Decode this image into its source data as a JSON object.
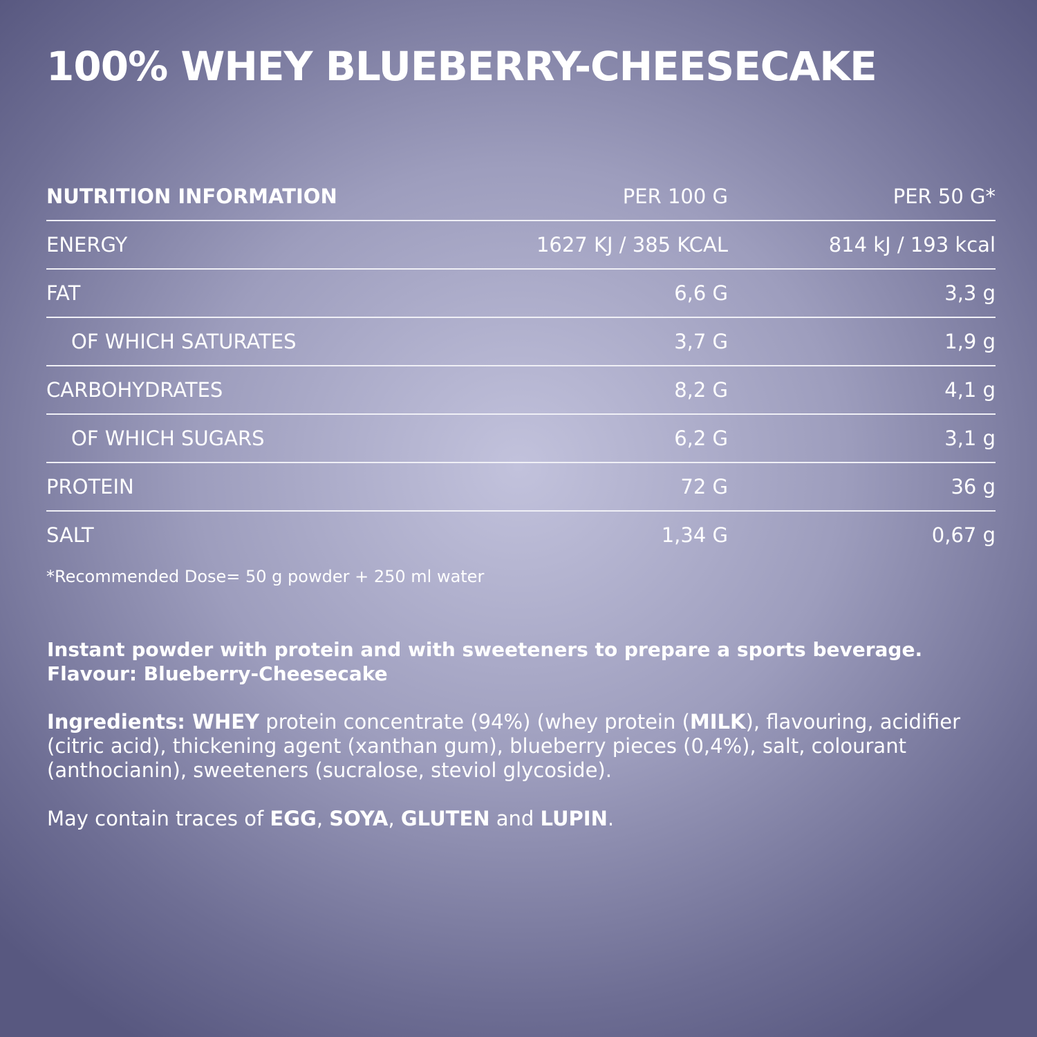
{
  "title": "100% WHEY BLUEBERRY-CHEESECAKE",
  "table": {
    "header": [
      "NUTRITION INFORMATION",
      "PER 100 G",
      "PER 50 G*"
    ],
    "rows": [
      [
        "ENERGY",
        "1627 KJ / 385 KCAL",
        "814 kJ / 193 kcal"
      ],
      [
        "FAT",
        "6,6 G",
        "3,3 g"
      ],
      [
        "OF WHICH SATURATES",
        "3,7 G",
        "1,9 g"
      ],
      [
        "CARBOHYDRATES",
        "8,2 G",
        "4,1 g"
      ],
      [
        "OF WHICH SUGARS",
        "6,2 G",
        "3,1 g"
      ],
      [
        "PROTEIN",
        "72 G",
        "36 g"
      ],
      [
        "SALT",
        "1,34 G",
        "0,67 g"
      ]
    ]
  },
  "footnote": "*Recommended Dose= 50 g powder + 250 ml water",
  "description": [
    "Instant powder with protein and with sweeteners to prepare a sports beverage.",
    "Flavour: Blueberry-Cheesecake"
  ],
  "ingredients": [
    "Ingredients:",
    " WHEY",
    " protein concentrate (94%) (whey protein (",
    "MILK",
    "), flavouring, acidifier (citric acid), thickening agent (xanthan gum), blueberry pieces (0,4%), salt, colourant (anthocianin), sweeteners (sucralose, steviol glycoside)."
  ],
  "allergens": [
    "May contain traces of ",
    "EGG",
    ", ",
    "SOYA",
    ", ",
    "GLUTEN",
    " and ",
    "LUPIN",
    "."
  ]
}
